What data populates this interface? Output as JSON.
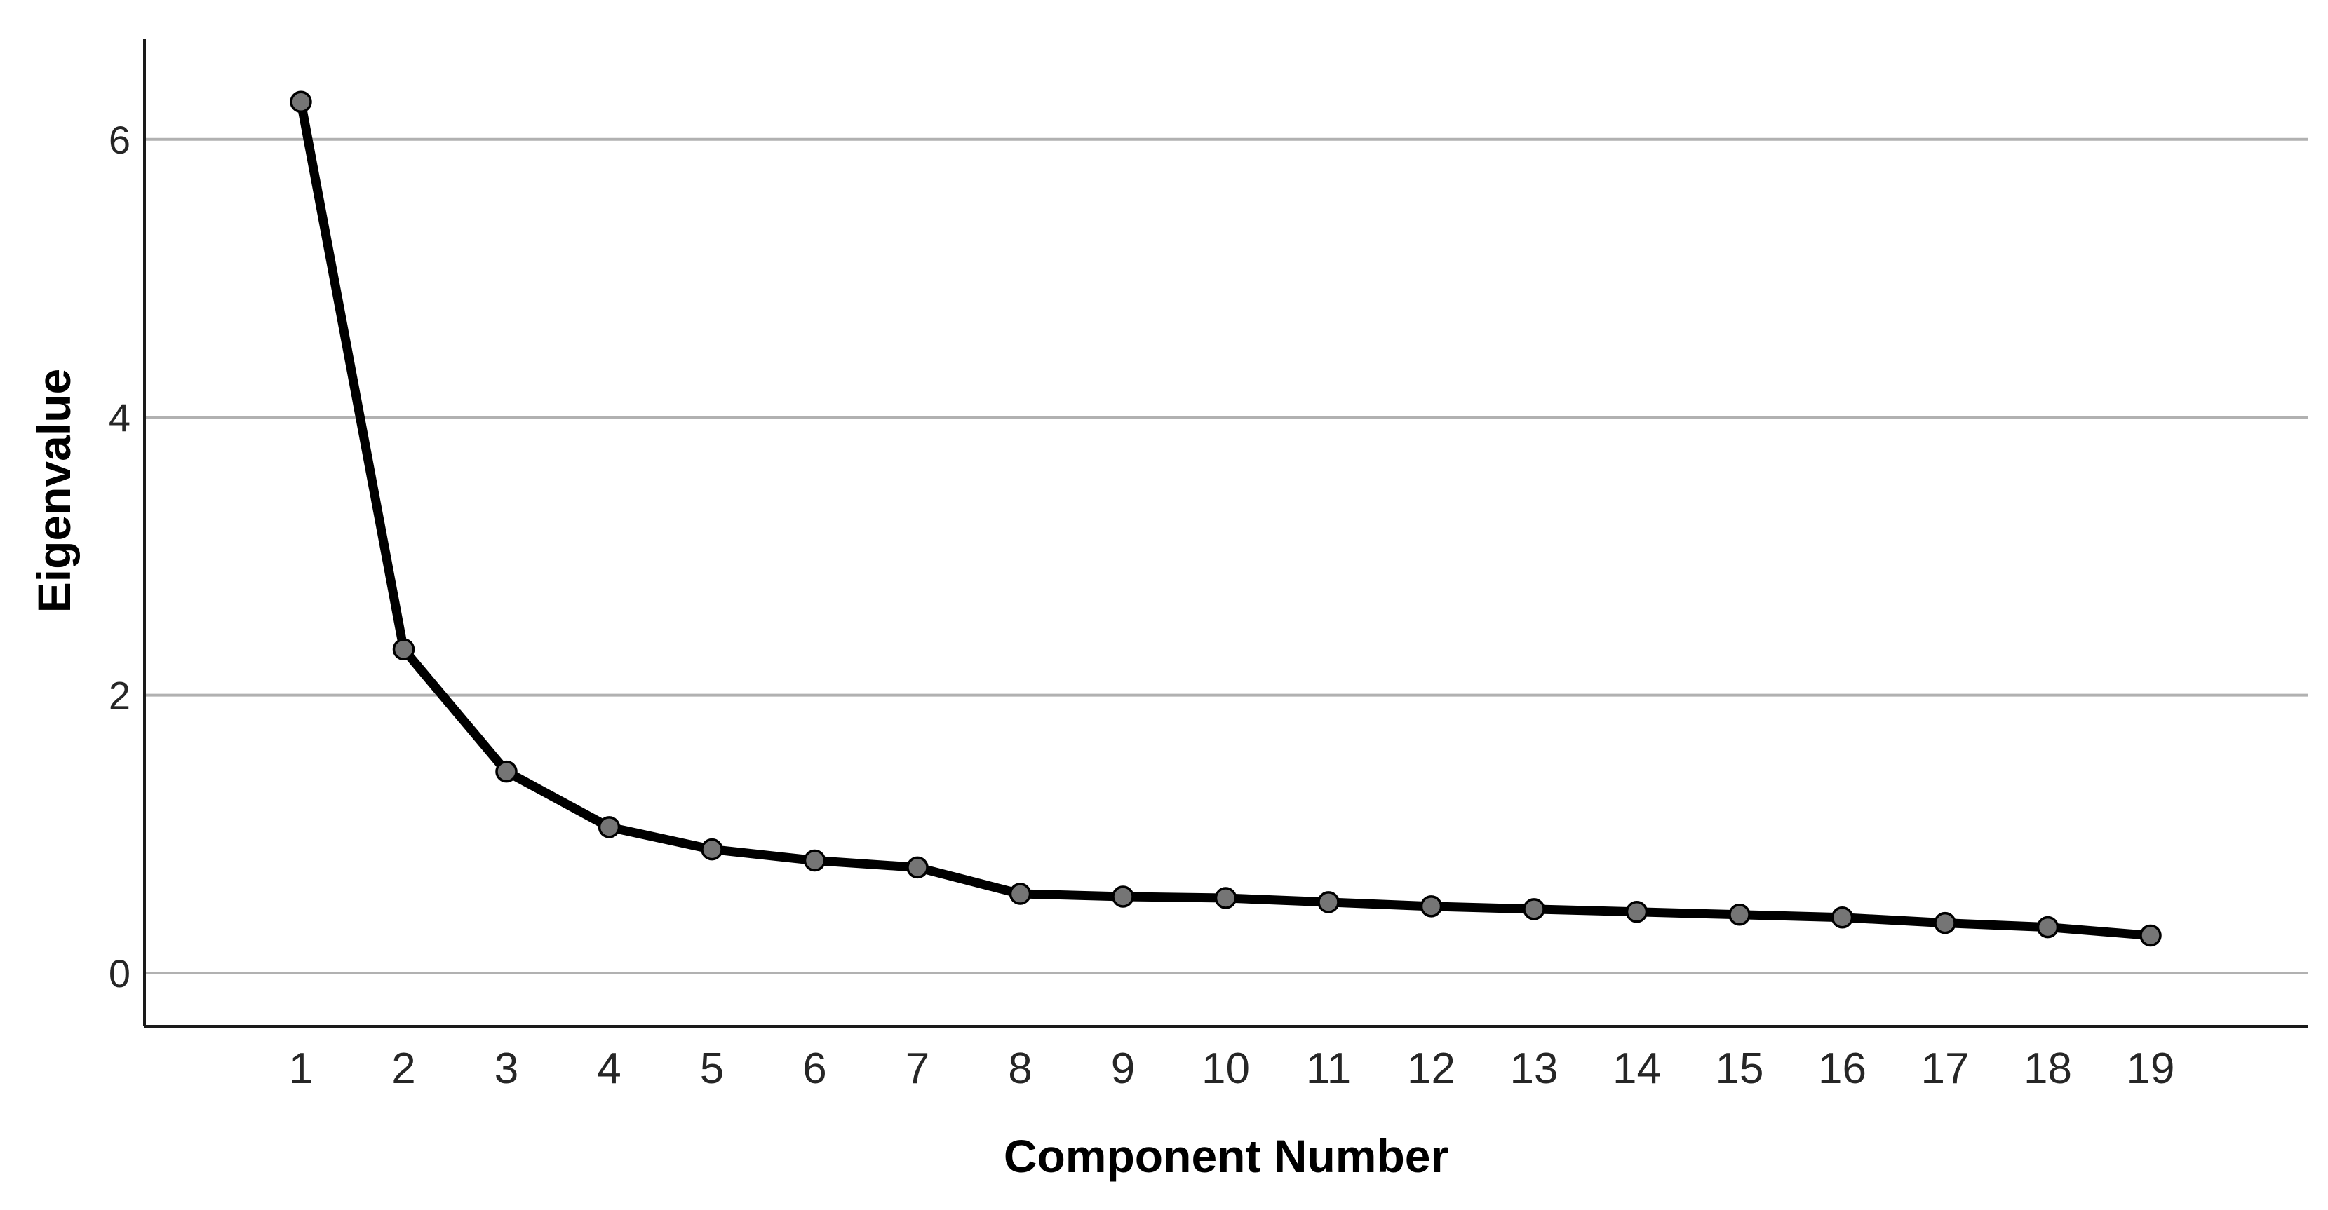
{
  "chart_data": {
    "type": "line",
    "title": "",
    "xlabel": "Component Number",
    "ylabel": "Eigenvalue",
    "categories": [
      1,
      2,
      3,
      4,
      5,
      6,
      7,
      8,
      9,
      10,
      11,
      12,
      13,
      14,
      15,
      16,
      17,
      18,
      19
    ],
    "series": [
      {
        "name": "Eigenvalue",
        "values": [
          6.27,
          2.33,
          1.45,
          1.05,
          0.89,
          0.81,
          0.76,
          0.57,
          0.55,
          0.54,
          0.51,
          0.48,
          0.46,
          0.44,
          0.42,
          0.4,
          0.36,
          0.33,
          0.27
        ]
      }
    ],
    "x_tick_labels": [
      "1",
      "2",
      "3",
      "4",
      "5",
      "6",
      "7",
      "8",
      "9",
      "10",
      "11",
      "12",
      "13",
      "14",
      "15",
      "16",
      "17",
      "18",
      "19"
    ],
    "y_ticks": [
      0,
      2,
      4,
      6
    ],
    "y_tick_labels": [
      "0",
      "2",
      "4",
      "6"
    ],
    "ylim": [
      -0.38,
      6.72
    ],
    "grid": "horizontal-only",
    "legend": "none",
    "marker": "filled-circle",
    "colors": {
      "line": "#000000",
      "marker_fill": "#757575",
      "marker_stroke": "#000000",
      "gridline": "#b1b1b1",
      "axis": "#1a1a1a",
      "tick_text": "#262626",
      "title_text": "#000000",
      "background": "#ffffff"
    }
  }
}
